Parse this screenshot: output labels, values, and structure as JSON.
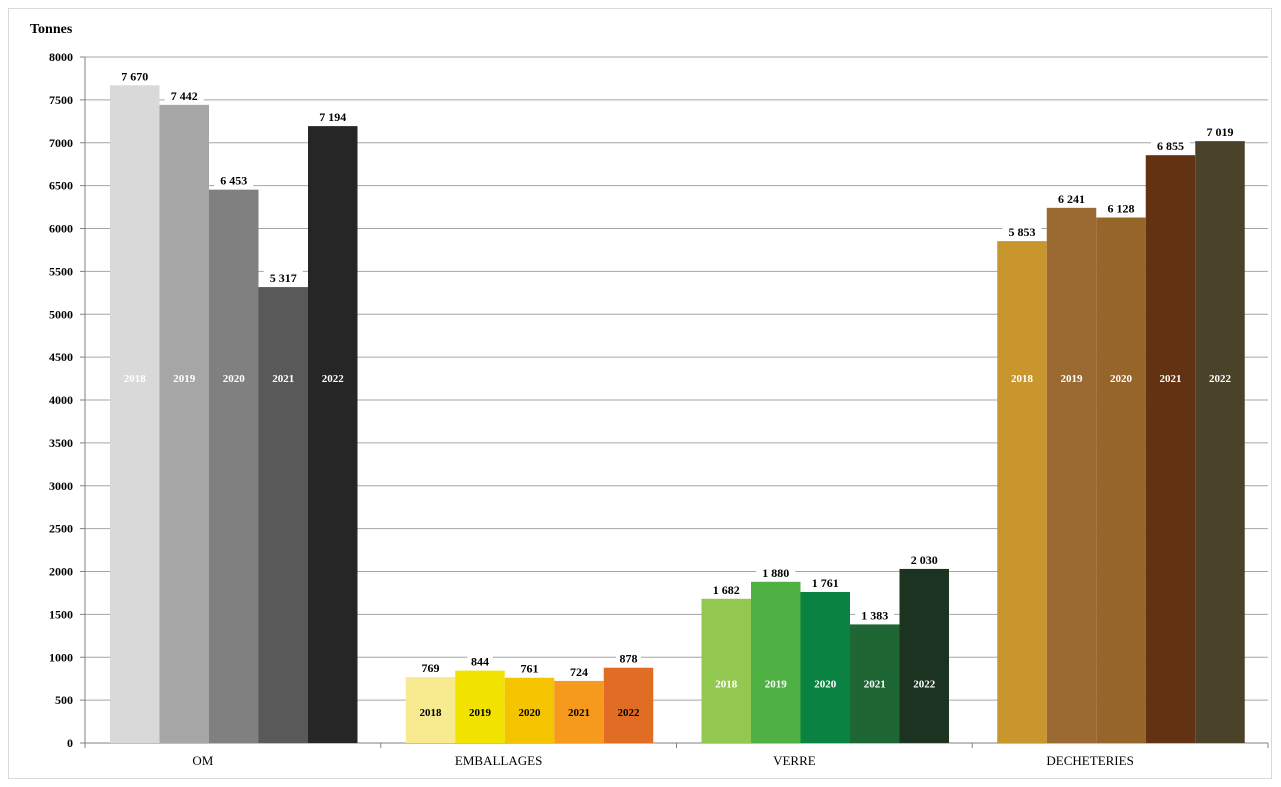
{
  "chart_data": {
    "type": "bar",
    "ylabel": "Tonnes",
    "ylim": [
      0,
      8000
    ],
    "yticks": [
      0,
      500,
      1000,
      1500,
      2000,
      2500,
      3000,
      3500,
      4000,
      4500,
      5000,
      5500,
      6000,
      6500,
      7000,
      7500,
      8000
    ],
    "grid": true,
    "categories": [
      "OM",
      "EMBALLAGES",
      "VERRE",
      "DECHETERIES"
    ],
    "years": [
      "2018",
      "2019",
      "2020",
      "2021",
      "2022"
    ],
    "groups": [
      {
        "category": "OM",
        "values": [
          7670,
          7442,
          6453,
          5317,
          7194
        ],
        "value_labels": [
          "7 670",
          "7 442",
          "6 453",
          "5 317",
          "7 194"
        ],
        "colors": [
          "#d9d9d9",
          "#a6a6a6",
          "#808080",
          "#595959",
          "#262626"
        ],
        "year_label_colors": [
          "#ffffff",
          "#ffffff",
          "#ffffff",
          "#ffffff",
          "#ffffff"
        ]
      },
      {
        "category": "EMBALLAGES",
        "values": [
          769,
          844,
          761,
          724,
          878
        ],
        "value_labels": [
          "769",
          "844",
          "761",
          "724",
          "878"
        ],
        "colors": [
          "#f7ea8f",
          "#f2e200",
          "#f5c400",
          "#f59a1c",
          "#e06d23"
        ],
        "year_label_colors": [
          "#000000",
          "#000000",
          "#000000",
          "#000000",
          "#000000"
        ]
      },
      {
        "category": "VERRE",
        "values": [
          1682,
          1880,
          1761,
          1383,
          2030
        ],
        "value_labels": [
          "1 682",
          "1 880",
          "1 761",
          "1 383",
          "2 030"
        ],
        "colors": [
          "#92c84f",
          "#4fb043",
          "#0a8241",
          "#1e6634",
          "#1b3320"
        ],
        "year_label_colors": [
          "#ffffff",
          "#ffffff",
          "#ffffff",
          "#ffffff",
          "#ffffff"
        ]
      },
      {
        "category": "DECHETERIES",
        "values": [
          5853,
          6241,
          6128,
          6855,
          7019
        ],
        "value_labels": [
          "5 853",
          "6 241",
          "6 128",
          "6 855",
          "7 019"
        ],
        "colors": [
          "#c8962d",
          "#9b6a33",
          "#95652a",
          "#623212",
          "#4a432a"
        ],
        "year_label_colors": [
          "#ffffff",
          "#ffffff",
          "#ffffff",
          "#ffffff",
          "#ffffff"
        ]
      }
    ]
  }
}
